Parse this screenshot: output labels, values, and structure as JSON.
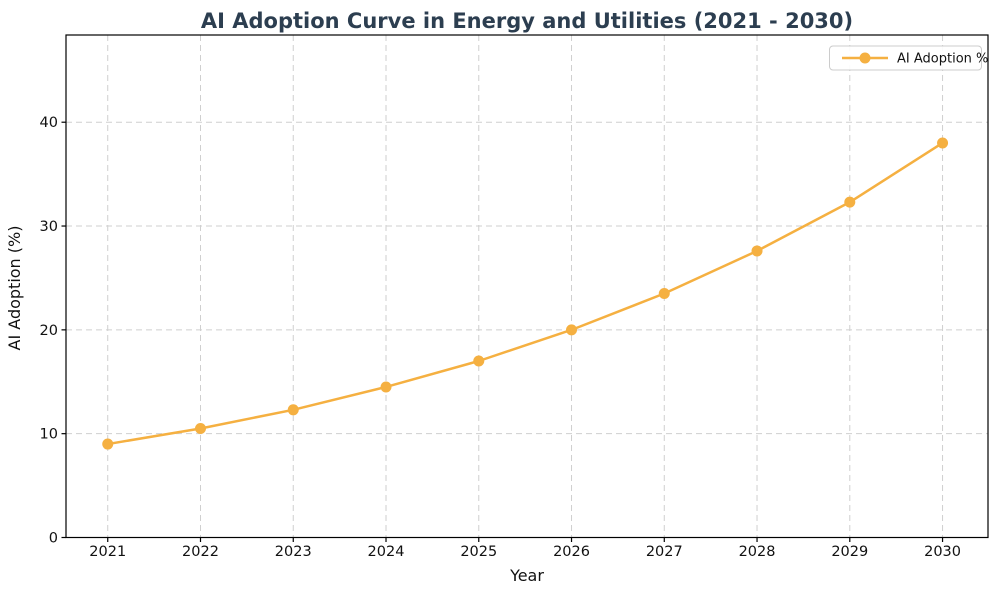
{
  "chart_data": {
    "type": "line",
    "title": "AI Adoption Curve in Energy and Utilities (2021 - 2030)",
    "xlabel": "Year",
    "ylabel": "AI Adoption (%)",
    "x": [
      2021,
      2022,
      2023,
      2024,
      2025,
      2026,
      2027,
      2028,
      2029,
      2030
    ],
    "series": [
      {
        "name": "AI Adoption %",
        "values": [
          9.0,
          10.5,
          12.3,
          14.5,
          17.0,
          20.0,
          23.5,
          27.6,
          32.3,
          38.0
        ],
        "color": "#F5B041",
        "marker": "circle"
      }
    ],
    "xticks": [
      2021,
      2022,
      2023,
      2024,
      2025,
      2026,
      2027,
      2028,
      2029,
      2030
    ],
    "yticks": [
      0,
      10,
      20,
      30,
      40
    ],
    "xlim": [
      2020.55,
      2030.49
    ],
    "ylim": [
      0,
      48.4
    ],
    "grid": true,
    "grid_style": "dashed",
    "legend_position": "upper right",
    "legend_labels": [
      "AI Adoption %"
    ]
  },
  "colors": {
    "line": "#F5B041",
    "title": "#2C3E50",
    "grid": "#cfcfcf",
    "axis": "#000000",
    "text": "#111111",
    "legend_border": "#cccccc",
    "legend_fill": "#ffffff"
  }
}
